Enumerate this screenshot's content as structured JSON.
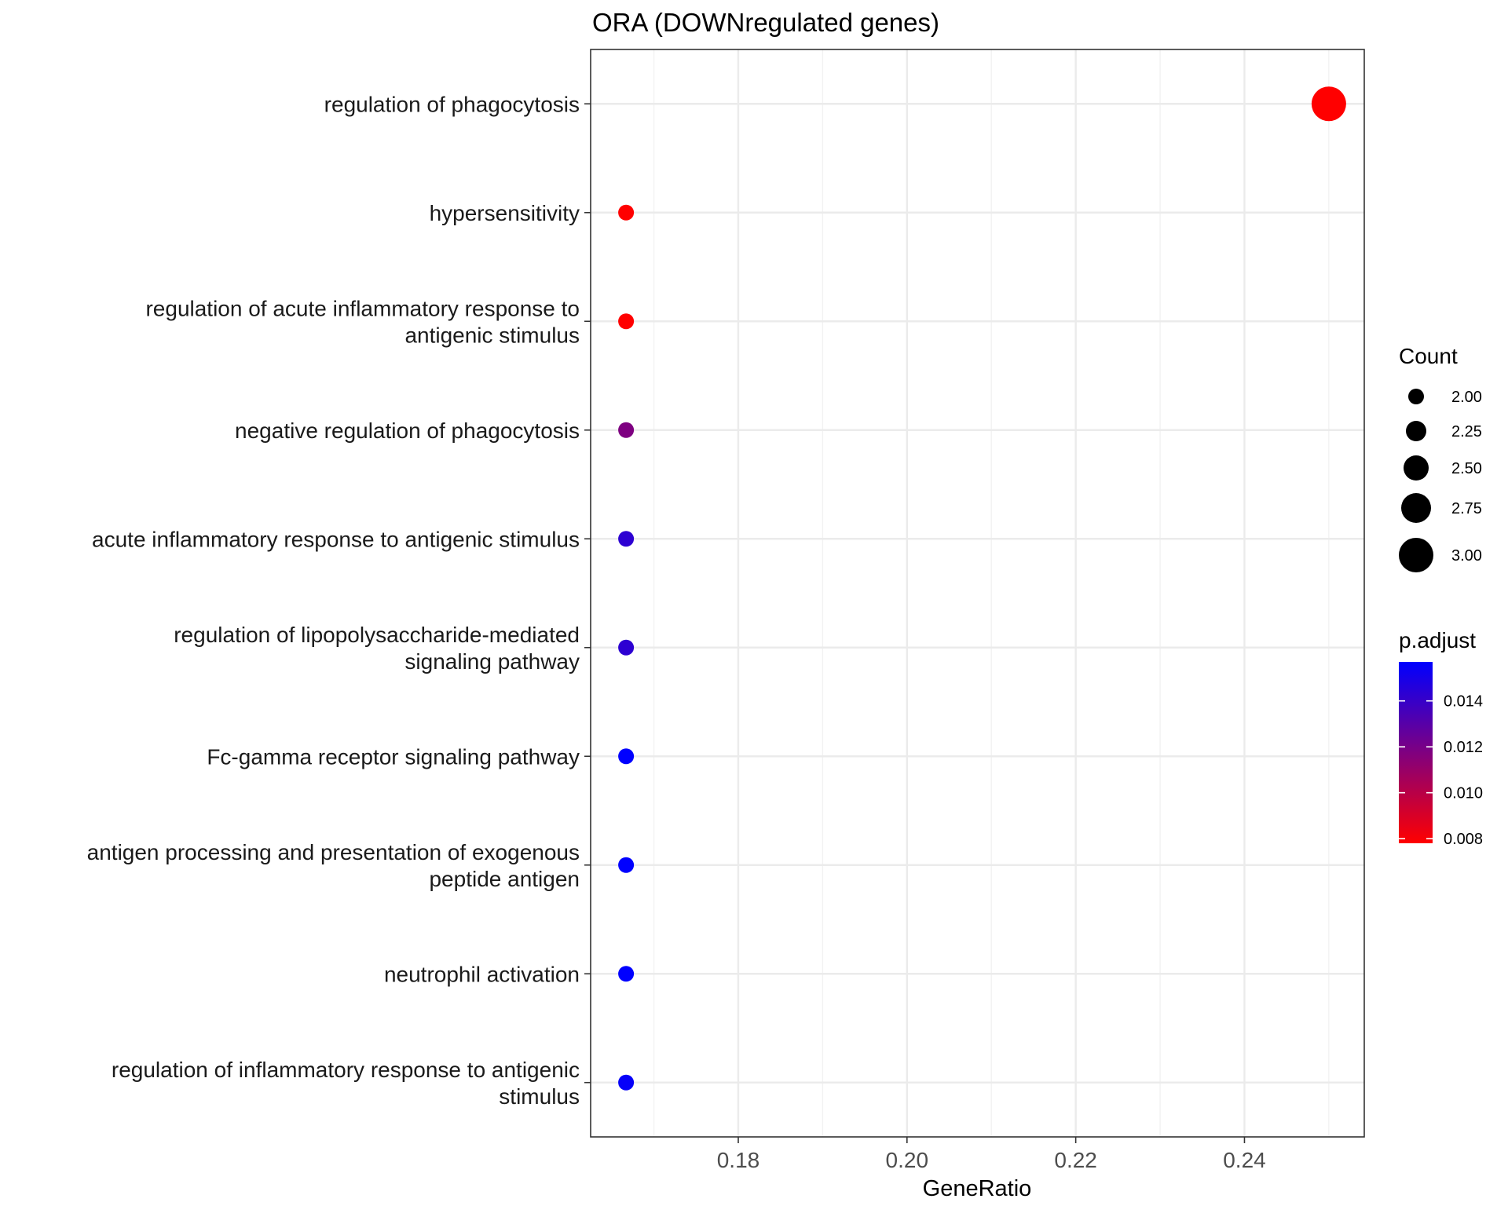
{
  "chart_data": {
    "type": "scatter",
    "title": "ORA (DOWNregulated genes)",
    "xlabel": "GeneRatio",
    "ylabel": "",
    "xlim": [
      0.1625,
      0.2542
    ],
    "xticks": [
      0.18,
      0.2,
      0.22,
      0.24
    ],
    "xtick_labels": [
      "0.18",
      "0.20",
      "0.22",
      "0.24"
    ],
    "grid": true,
    "categories": [
      [
        "regulation of phagocytosis"
      ],
      [
        "hypersensitivity"
      ],
      [
        "regulation of acute inflammatory response to",
        "antigenic stimulus"
      ],
      [
        "negative regulation of phagocytosis"
      ],
      [
        "acute inflammatory response to antigenic stimulus"
      ],
      [
        "regulation of lipopolysaccharide-mediated",
        "signaling pathway"
      ],
      [
        "Fc-gamma receptor signaling pathway"
      ],
      [
        "antigen processing and presentation of exogenous",
        "peptide antigen"
      ],
      [
        "neutrophil activation"
      ],
      [
        "regulation of inflammatory response to antigenic",
        "stimulus"
      ]
    ],
    "points": [
      {
        "x": 0.25,
        "count": 3,
        "p_adjust": 0.0078
      },
      {
        "x": 0.1667,
        "count": 2,
        "p_adjust": 0.0078
      },
      {
        "x": 0.1667,
        "count": 2,
        "p_adjust": 0.0078
      },
      {
        "x": 0.1667,
        "count": 2,
        "p_adjust": 0.0118
      },
      {
        "x": 0.1667,
        "count": 2,
        "p_adjust": 0.0143
      },
      {
        "x": 0.1667,
        "count": 2,
        "p_adjust": 0.0143
      },
      {
        "x": 0.1667,
        "count": 2,
        "p_adjust": 0.0157
      },
      {
        "x": 0.1667,
        "count": 2,
        "p_adjust": 0.0157
      },
      {
        "x": 0.1667,
        "count": 2,
        "p_adjust": 0.0157
      },
      {
        "x": 0.1667,
        "count": 2,
        "p_adjust": 0.0155
      }
    ],
    "size_legend": {
      "title": "Count",
      "values": [
        2.0,
        2.25,
        2.5,
        2.75,
        3.0
      ],
      "labels": [
        "2.00",
        "2.25",
        "2.50",
        "2.75",
        "3.00"
      ]
    },
    "color_legend": {
      "title": "p.adjust",
      "range": [
        0.0078,
        0.0157
      ],
      "ticks": [
        0.008,
        0.01,
        0.012,
        0.014
      ],
      "labels": [
        "0.008",
        "0.010",
        "0.012",
        "0.014"
      ],
      "low_color": "#ff0000",
      "high_color": "#0000ff"
    }
  }
}
